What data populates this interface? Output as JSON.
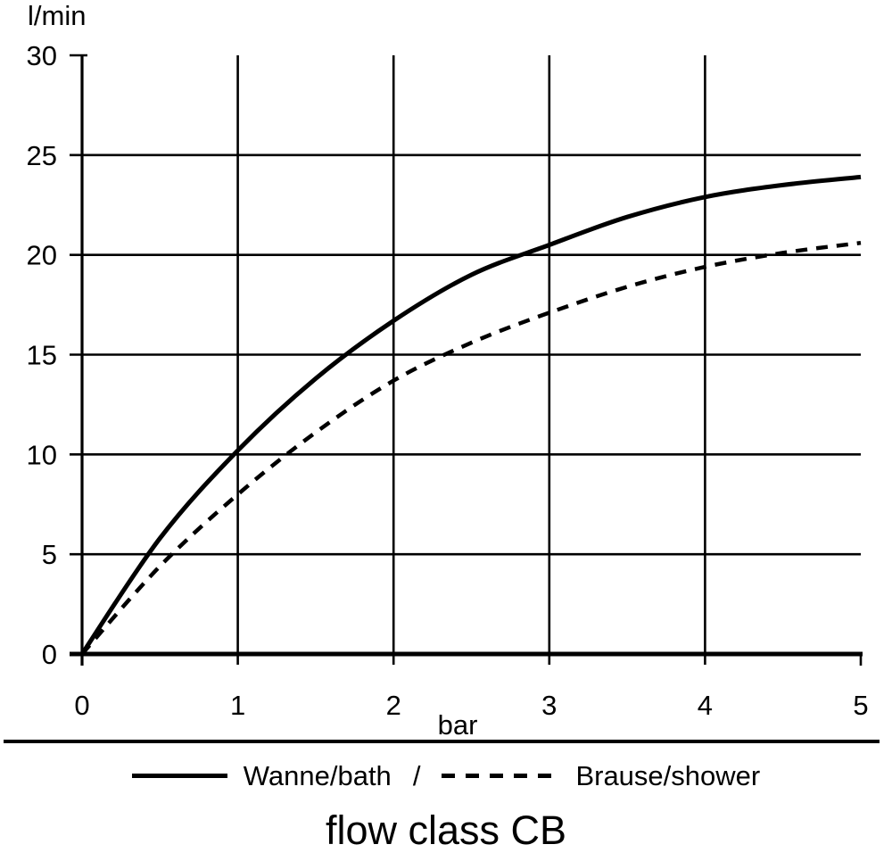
{
  "title": "flow class CB",
  "colors": {
    "line": "#000000",
    "background": "#ffffff"
  },
  "chart": {
    "y_axis_label": "l/min",
    "x_axis_label": "bar",
    "y_ticks": [
      30,
      25,
      20,
      15,
      10,
      5,
      0
    ],
    "x_ticks": [
      0,
      1,
      2,
      3,
      4,
      5
    ]
  },
  "legend": {
    "bath_label": "Wanne/bath",
    "separator": "/",
    "shower_label": "Brause/shower"
  },
  "chart_data": {
    "type": "line",
    "title": "flow class CB",
    "xlabel": "bar",
    "ylabel": "l/min",
    "xlim": [
      0,
      5
    ],
    "ylim": [
      0,
      30
    ],
    "x_tick_step": 1,
    "y_tick_step": 5,
    "grid": true,
    "legend_position": "bottom",
    "x": [
      0,
      0.5,
      1,
      1.5,
      2,
      2.5,
      3,
      3.5,
      4,
      4.5,
      5
    ],
    "series": [
      {
        "name": "Wanne/bath",
        "style": "solid",
        "color": "#000000",
        "values": [
          0,
          5.8,
          10.2,
          13.8,
          16.7,
          19.0,
          20.5,
          21.9,
          22.9,
          23.5,
          23.9
        ]
      },
      {
        "name": "Brause/shower",
        "style": "dashed",
        "color": "#000000",
        "values": [
          0,
          4.4,
          8.0,
          11.1,
          13.7,
          15.6,
          17.1,
          18.4,
          19.4,
          20.1,
          20.6
        ]
      }
    ]
  }
}
